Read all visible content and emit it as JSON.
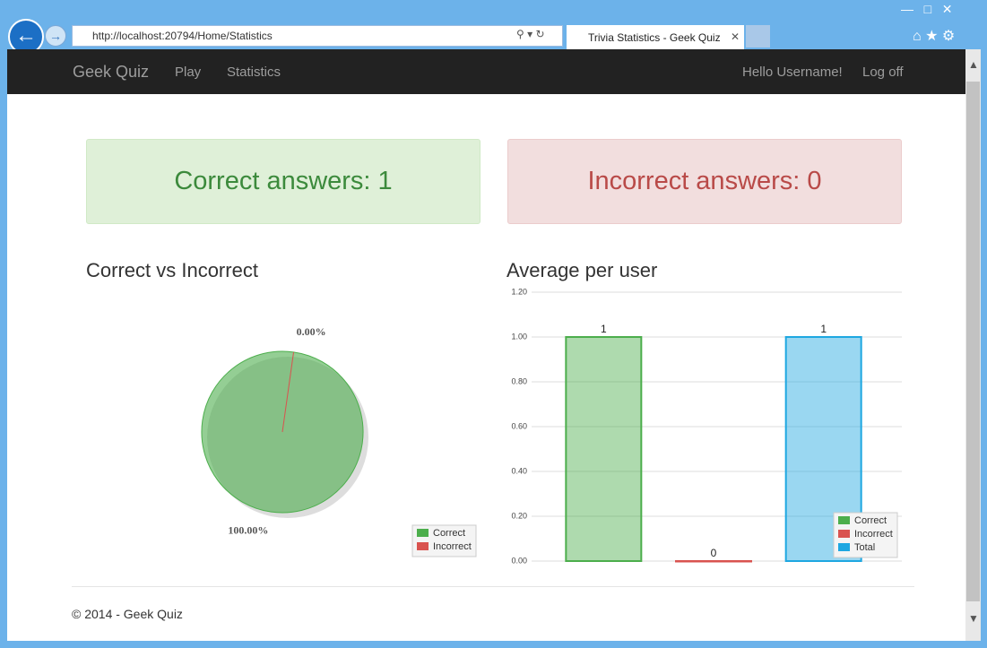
{
  "browser": {
    "url": "http://localhost:20794/Home/Statistics",
    "tab": "Trivia Statistics - Geek Quiz"
  },
  "navbar": {
    "brand": "Geek Quiz",
    "links": [
      "Play",
      "Statistics"
    ],
    "greeting": "Hello Username!",
    "logoff": "Log off"
  },
  "stats": {
    "correct": "Correct answers: 1",
    "incorrect": "Incorrect answers: 0"
  },
  "chart_data": [
    {
      "type": "pie",
      "title": "Correct vs Incorrect",
      "categories": [
        "Correct",
        "Incorrect"
      ],
      "values": [
        100,
        0
      ],
      "value_labels": [
        "100.00%",
        "0.00%"
      ],
      "colors": [
        "#4cae4c",
        "#d9534f"
      ],
      "legend": "lower right"
    },
    {
      "type": "bar",
      "title": "Average per user",
      "categories": [
        null
      ],
      "series": [
        {
          "name": "Correct",
          "color": "#4cae4c",
          "values": [
            1
          ]
        },
        {
          "name": "Incorrect",
          "color": "#d9534f",
          "values": [
            0
          ]
        },
        {
          "name": "Total",
          "color": "#1ea7e1",
          "values": [
            1
          ]
        }
      ],
      "ylim": [
        0,
        1.2
      ],
      "yticks": [
        {
          "value": 0,
          "label": "0.00"
        },
        {
          "value": 0.2,
          "label": "0.20"
        },
        {
          "value": 0.4,
          "label": "0.40"
        },
        {
          "value": 0.6,
          "label": "0.60"
        },
        {
          "value": 0.8,
          "label": "0.80"
        },
        {
          "value": 1,
          "label": "1.00"
        },
        {
          "value": 1.2,
          "label": "1.20"
        }
      ],
      "grid": true,
      "legend": "lower right"
    }
  ],
  "footer": "© 2014 - Geek Quiz"
}
